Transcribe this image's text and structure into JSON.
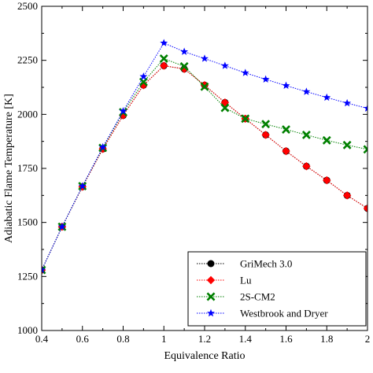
{
  "chart_data": {
    "type": "line",
    "title": "",
    "xlabel": "Equivalence Ratio",
    "ylabel": "Adiabatic Flame Temperature [K]",
    "xlim": [
      0.4,
      2.0
    ],
    "ylim": [
      1000,
      2500
    ],
    "xticks": [
      0.4,
      0.6,
      0.8,
      1.0,
      1.2,
      1.4,
      1.6,
      1.8,
      2.0
    ],
    "xtick_labels": [
      "0.4",
      "0.6",
      "0.8",
      "1",
      "1.2",
      "1.4",
      "1.6",
      "1.8",
      "2"
    ],
    "yticks": [
      1000,
      1250,
      1500,
      1750,
      2000,
      2250,
      2500
    ],
    "ytick_labels": [
      "1000",
      "1250",
      "1500",
      "1750",
      "2000",
      "2250",
      "2500"
    ],
    "grid": false,
    "legend_position": "bottom-right",
    "x": [
      0.4,
      0.5,
      0.6,
      0.7,
      0.8,
      0.9,
      1.0,
      1.1,
      1.2,
      1.3,
      1.4,
      1.5,
      1.6,
      1.7,
      1.8,
      1.9,
      2.0
    ],
    "series": [
      {
        "name": "GriMech 3.0",
        "color": "#000000",
        "marker": "circle",
        "values": [
          1280,
          1480,
          1665,
          1840,
          1995,
          2135,
          2225,
          2210,
          2135,
          2055,
          1980,
          1905,
          1830,
          1760,
          1695,
          1625,
          1565
        ]
      },
      {
        "name": "Lu",
        "color": "#ff0000",
        "marker": "diamond",
        "values": [
          1280,
          1480,
          1665,
          1840,
          1995,
          2135,
          2225,
          2210,
          2135,
          2055,
          1980,
          1905,
          1830,
          1760,
          1695,
          1625,
          1565
        ]
      },
      {
        "name": "2S-CM2",
        "color": "#008000",
        "marker": "cross",
        "values": [
          1280,
          1480,
          1668,
          1845,
          2010,
          2150,
          2258,
          2222,
          2128,
          2030,
          1980,
          1955,
          1930,
          1905,
          1880,
          1858,
          1838
        ]
      },
      {
        "name": "Westbrook and Dryer",
        "color": "#0000ff",
        "marker": "star",
        "values": [
          1280,
          1480,
          1668,
          1848,
          2015,
          2175,
          2330,
          2290,
          2258,
          2225,
          2192,
          2162,
          2133,
          2105,
          2078,
          2052,
          2028
        ]
      }
    ]
  }
}
